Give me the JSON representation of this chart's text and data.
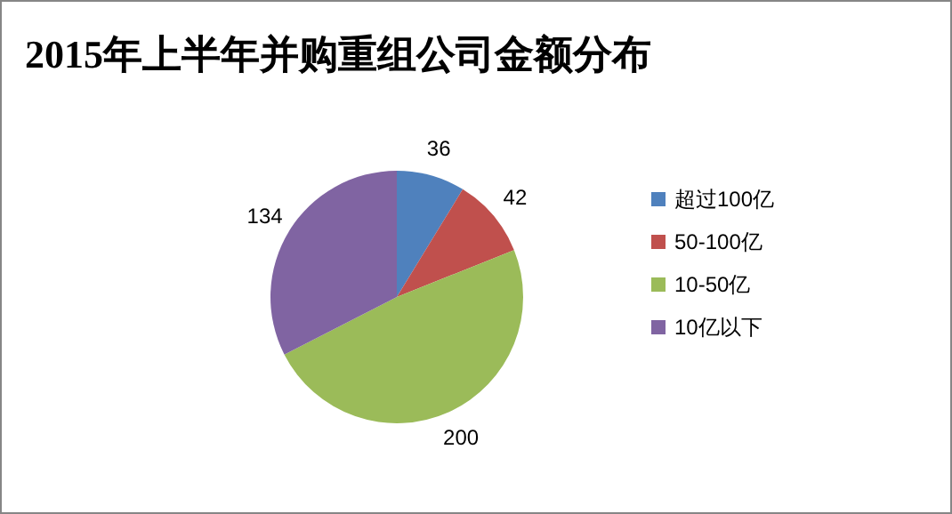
{
  "chart_data": {
    "type": "pie",
    "title": "2015年上半年并购重组公司金额分布",
    "categories": [
      "超过100亿",
      "50-100亿",
      "10-50亿",
      "10亿以下"
    ],
    "values": [
      36,
      42,
      200,
      134
    ],
    "colors": [
      "#4f81bd",
      "#c0504d",
      "#9bbb59",
      "#8064a2"
    ],
    "data_labels": true,
    "legend": "right"
  }
}
